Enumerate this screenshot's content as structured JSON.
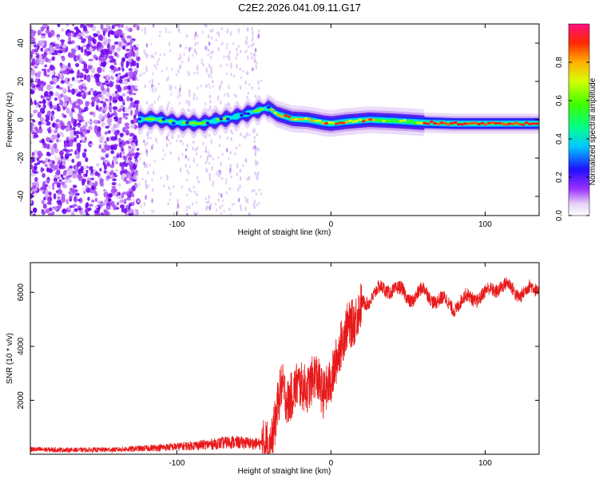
{
  "title": "C2E2.2026.041.09.11.G17",
  "chart_data": [
    {
      "type": "heatmap",
      "name": "spectrogram",
      "xlabel": "Height of straight line (km)",
      "ylabel": "Frequency (Hz)",
      "xlim": [
        -195,
        135
      ],
      "ylim": [
        -50,
        50
      ],
      "xticks": [
        -100,
        0,
        100
      ],
      "yticks": [
        -40,
        -20,
        0,
        20,
        40
      ],
      "ridge_x": [
        -125,
        -115,
        -100,
        -85,
        -75,
        -65,
        -55,
        -45,
        -40,
        -35,
        -25,
        -15,
        -5,
        0,
        10,
        25,
        40,
        60,
        80,
        100,
        120,
        135
      ],
      "ridge_y": [
        0,
        0.5,
        -1.5,
        -2,
        -0.5,
        1,
        3,
        5.5,
        6,
        3,
        0.5,
        0,
        -1.5,
        -2,
        -1,
        0,
        -0.5,
        -1.5,
        -2,
        -2,
        -2,
        -2
      ],
      "noise_region_xlim": [
        -195,
        -125
      ],
      "sparse_noise_region_xlim": [
        -125,
        -45
      ],
      "colorbar": {
        "label": "Normalized spectral amplitude",
        "range": [
          0,
          1
        ],
        "ticks": [
          0.0,
          0.2,
          0.4,
          0.6,
          0.8
        ],
        "tick_labels": [
          "0.0",
          "0.2",
          "0.4",
          "0.6",
          "0.8"
        ]
      }
    },
    {
      "type": "line",
      "name": "snr",
      "xlabel": "Height of straight line (km)",
      "ylabel": "SNR (10 * v/v)",
      "xlim": [
        -195,
        135
      ],
      "ylim": [
        0,
        7100
      ],
      "xticks": [
        -100,
        0,
        100
      ],
      "yticks": [
        2000,
        4000,
        6000
      ],
      "color": "#e8191a",
      "series": [
        {
          "name": "SNR",
          "x": [
            -195,
            -170,
            -140,
            -120,
            -100,
            -80,
            -65,
            -55,
            -45,
            -38,
            -35,
            -32,
            -28,
            -22,
            -15,
            -10,
            -5,
            0,
            5,
            10,
            15,
            20,
            30,
            40,
            50,
            60,
            70,
            80,
            90,
            100,
            110,
            120,
            135
          ],
          "y": [
            180,
            160,
            170,
            220,
            280,
            360,
            450,
            420,
            380,
            500,
            1700,
            2600,
            1900,
            2600,
            2400,
            3000,
            2200,
            2700,
            3800,
            4700,
            4900,
            5600,
            6000,
            6200,
            5800,
            6000,
            5700,
            5500,
            5800,
            5900,
            6300,
            6000,
            6100
          ]
        }
      ]
    }
  ]
}
